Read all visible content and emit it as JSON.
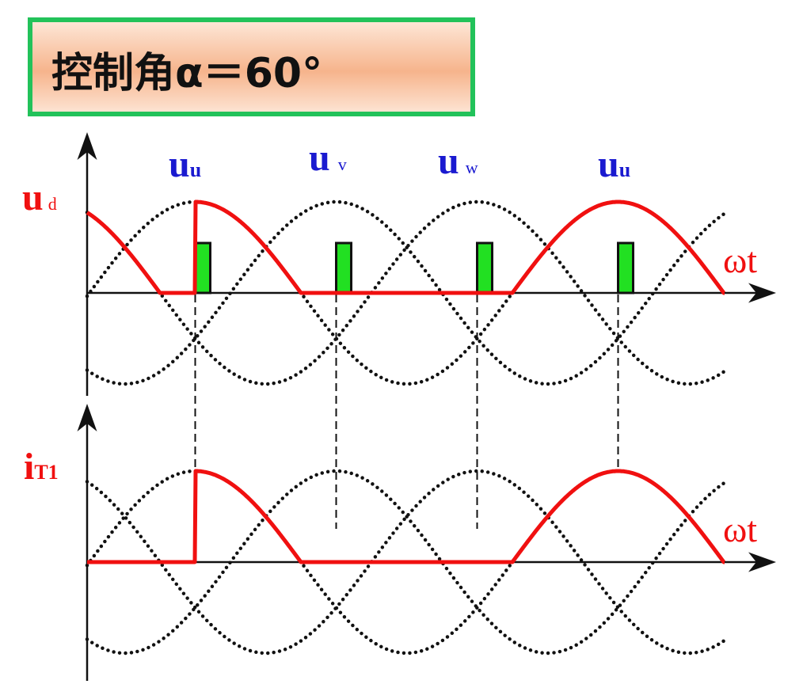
{
  "title": "控制角α＝60°",
  "labels": {
    "ud_main": "u",
    "ud_sub": "d",
    "it_main": "i",
    "it_sub": "T1",
    "omega_t_top": "ωt",
    "omega_t_bottom": "ωt",
    "phases": [
      {
        "main": "u",
        "sub": "u"
      },
      {
        "main": "u",
        "sub": "v"
      },
      {
        "main": "u",
        "sub": "w"
      },
      {
        "main": "u",
        "sub": "u"
      }
    ]
  },
  "diagram": {
    "firing_angle_deg": 60,
    "colors": {
      "output": "#f01010",
      "phase_curves": "#111111",
      "gate_pulse": "#22e022",
      "title_border": "#22c25a",
      "phase_label": "#1a1ad0"
    }
  }
}
